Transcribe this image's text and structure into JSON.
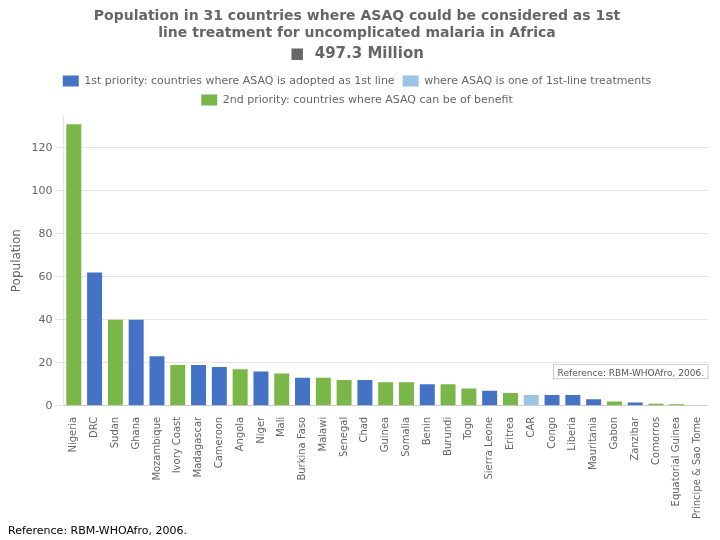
{
  "chart_data": {
    "type": "bar",
    "title": [
      "Population in 31 countries where ASAQ could be considered as 1st",
      "line treatment for uncomplicated malaria in Africa"
    ],
    "subtitle": "■  497.3 Million",
    "ylabel": "Population",
    "annotations": [
      "Reference: RBM-WHOAfro, 2006.",
      "Reference: RBM-WHOAfro, 2006."
    ],
    "categories": [
      "Nigeria",
      "DRC",
      "Sudan",
      "Ghana",
      "Mozambique",
      "Ivory Coast",
      "Madagascar",
      "Cameroon",
      "Angola",
      "Niger",
      "Mali",
      "Burkina Faso",
      "Malawi",
      "Senegal",
      "Chad",
      "Guinea",
      "Somalia",
      "Benin",
      "Burundi",
      "Togo",
      "Sierra Leone",
      "Eritrea",
      "CAR",
      "Congo",
      "Liberia",
      "Mauritania",
      "Gabon",
      "Zanzibar",
      "Comorros",
      "Equatorial Guinea",
      "Principe & Sao Tome"
    ],
    "series": [
      {
        "name": "1st priority: countries where ASAQ is adopted as 1st line",
        "color": "#4472c4",
        "values": [
          null,
          62,
          null,
          40,
          23,
          null,
          19,
          18,
          null,
          16,
          null,
          13,
          null,
          null,
          12,
          null,
          null,
          10,
          null,
          null,
          7,
          null,
          null,
          5,
          5,
          3,
          null,
          1.5,
          null,
          null,
          null
        ]
      },
      {
        "name": "where ASAQ is one of 1st-line treatments",
        "color": "#9dc3e6",
        "values": [
          null,
          null,
          null,
          null,
          null,
          null,
          null,
          null,
          null,
          null,
          null,
          null,
          null,
          null,
          null,
          null,
          null,
          null,
          null,
          null,
          null,
          null,
          5,
          null,
          null,
          null,
          null,
          null,
          null,
          null,
          null
        ]
      },
      {
        "name": "2nd priority: countries where ASAQ can be of benefit",
        "color": "#7ab648",
        "values": [
          131,
          null,
          40,
          null,
          null,
          19,
          null,
          null,
          17,
          null,
          15,
          null,
          13,
          12,
          null,
          11,
          11,
          null,
          10,
          8,
          null,
          6,
          null,
          null,
          null,
          null,
          2,
          null,
          1,
          0.7,
          0.2
        ]
      }
    ],
    "stacked": true,
    "ylim": [
      0,
      135
    ],
    "yticks": [
      0,
      20,
      40,
      60,
      80,
      100,
      120
    ],
    "grid": true,
    "legend": "top"
  }
}
